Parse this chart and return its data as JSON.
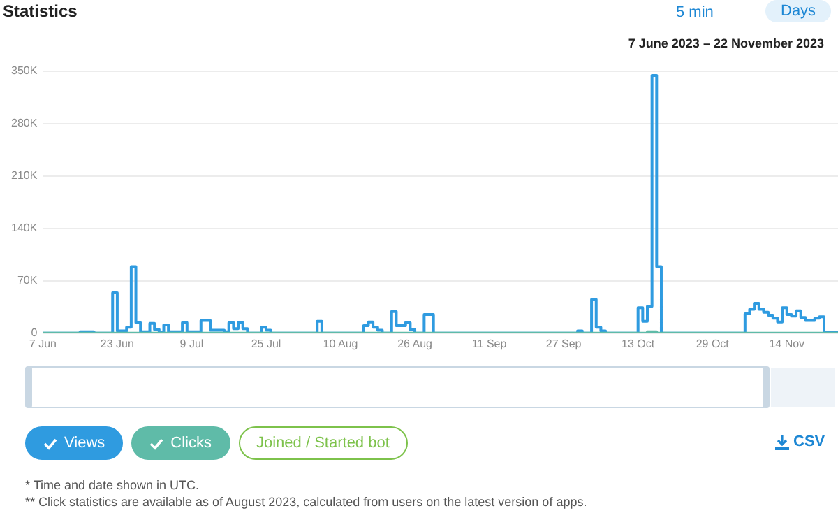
{
  "chart_data": {
    "type": "step",
    "title": "Statistics",
    "subtitle": "7 June 2023 – 22 November 2023",
    "annotations": [
      "5 min",
      "Days",
      "CSV",
      "* Time and date shown in UTC.",
      "** Click statistics are available as of August 2023, calculated from users on the latest version of apps."
    ],
    "xlim": [
      "2023-06-07",
      "2023-11-25"
    ],
    "xticks": [
      {
        "value": "2023-06-07",
        "label": "7 Jun"
      },
      {
        "value": "2023-06-23",
        "label": "23 Jun"
      },
      {
        "value": "2023-07-09",
        "label": "9 Jul"
      },
      {
        "value": "2023-07-25",
        "label": "25 Jul"
      },
      {
        "value": "2023-08-10",
        "label": "10 Aug"
      },
      {
        "value": "2023-08-26",
        "label": "26 Aug"
      },
      {
        "value": "2023-09-11",
        "label": "11 Sep"
      },
      {
        "value": "2023-09-27",
        "label": "27 Sep"
      },
      {
        "value": "2023-10-13",
        "label": "13 Oct"
      },
      {
        "value": "2023-10-29",
        "label": "29 Oct"
      },
      {
        "value": "2023-11-14",
        "label": "14 Nov"
      }
    ],
    "ylim": [
      0,
      350000
    ],
    "yticks": [
      0,
      {
        "value": 70000,
        "label": "70K"
      },
      {
        "value": 140000,
        "label": "140K"
      },
      {
        "value": 210000,
        "label": "210K"
      },
      {
        "value": 280000,
        "label": "280K"
      },
      {
        "value": 350000,
        "label": "350K"
      }
    ],
    "grid": "y",
    "legend": "bottom left",
    "marker": "none",
    "series": [
      {
        "name": "Views",
        "color": "#2f9be0",
        "x": [
          "2023-06-07",
          "2023-06-15",
          "2023-06-18",
          "2023-06-22",
          "2023-06-23",
          "2023-06-25",
          "2023-06-26",
          "2023-06-27",
          "2023-06-28",
          "2023-06-30",
          "2023-07-01",
          "2023-07-02",
          "2023-07-03",
          "2023-07-04",
          "2023-07-07",
          "2023-07-08",
          "2023-07-11",
          "2023-07-13",
          "2023-07-16",
          "2023-07-17",
          "2023-07-18",
          "2023-07-19",
          "2023-07-20",
          "2023-07-21",
          "2023-07-24",
          "2023-07-25",
          "2023-07-26",
          "2023-08-05",
          "2023-08-06",
          "2023-08-15",
          "2023-08-16",
          "2023-08-17",
          "2023-08-18",
          "2023-08-19",
          "2023-08-21",
          "2023-08-22",
          "2023-08-24",
          "2023-08-25",
          "2023-08-26",
          "2023-08-28",
          "2023-08-30",
          "2023-09-30",
          "2023-10-01",
          "2023-10-03",
          "2023-10-04",
          "2023-10-05",
          "2023-10-06",
          "2023-10-13",
          "2023-10-14",
          "2023-10-15",
          "2023-10-16",
          "2023-10-17",
          "2023-10-18",
          "2023-11-05",
          "2023-11-06",
          "2023-11-07",
          "2023-11-08",
          "2023-11-09",
          "2023-11-10",
          "2023-11-11",
          "2023-11-12",
          "2023-11-13",
          "2023-11-14",
          "2023-11-15",
          "2023-11-16",
          "2023-11-17",
          "2023-11-18",
          "2023-11-19",
          "2023-11-20",
          "2023-11-21",
          "2023-11-22",
          "2023-11-25"
        ],
        "values": [
          0,
          2000,
          0,
          54000,
          3000,
          8000,
          89000,
          14000,
          2000,
          13000,
          5000,
          1000,
          11000,
          2000,
          14000,
          2000,
          17000,
          4000,
          2000,
          14000,
          6000,
          14000,
          6000,
          0,
          8000,
          4000,
          0,
          16000,
          0,
          10000,
          15000,
          8000,
          4000,
          0,
          29000,
          10000,
          14000,
          5000,
          0,
          25000,
          0,
          3000,
          0,
          45000,
          8000,
          3000,
          0,
          34000,
          16000,
          36000,
          344000,
          89000,
          0,
          26000,
          32000,
          40000,
          32000,
          28000,
          24000,
          20000,
          15000,
          34000,
          25000,
          23000,
          30000,
          21000,
          17000,
          17000,
          20000,
          22000,
          1000,
          1000
        ]
      },
      {
        "name": "Clicks",
        "color": "#5fbba8",
        "x": [
          "2023-06-07",
          "2023-10-15",
          "2023-10-17",
          "2023-11-25"
        ],
        "values": [
          0,
          2000,
          0,
          0
        ]
      },
      {
        "name": "Joined / Started bot",
        "color": "#7dc24b"
      }
    ]
  }
}
